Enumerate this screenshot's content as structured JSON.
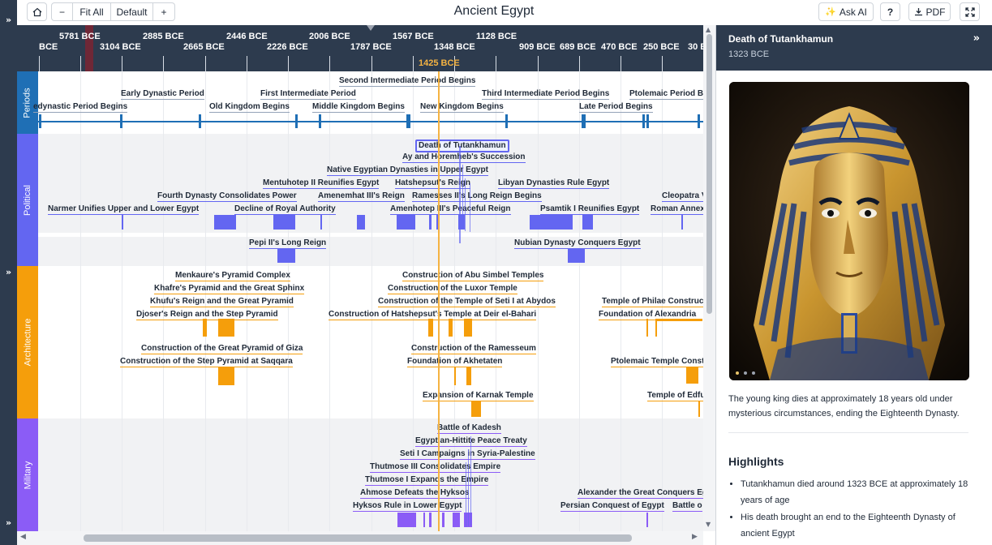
{
  "toolbar": {
    "home_icon": "home-icon",
    "zoom_out_label": "−",
    "fit_all_label": "Fit All",
    "default_label": "Default",
    "zoom_in_label": "+",
    "title": "Ancient Egypt",
    "ask_ai_label": "Ask AI",
    "help_label": "?",
    "pdf_label": "PDF",
    "fullscreen_icon": "fullscreen-icon"
  },
  "rail": {
    "expand_glyph": "»"
  },
  "ruler": {
    "top_labels": [
      "5781 BCE",
      "2885 BCE",
      "2446 BCE",
      "2006 BCE",
      "1567 BCE",
      "1128 BCE"
    ],
    "bottom_labels": [
      "BCE",
      "3104 BCE",
      "2665 BCE",
      "2226 BCE",
      "1787 BCE",
      "1348 BCE",
      "909 BCE",
      "689 BCE",
      "470 BCE",
      "250 BCE",
      "30 E"
    ],
    "current": "1425 BCE"
  },
  "categories": {
    "periods": "Periods",
    "political": "Political",
    "architecture": "Architecture",
    "military": "Military"
  },
  "events": {
    "periods": [
      "Second Intermediate Period Begins",
      "Early Dynastic Period",
      "First Intermediate Period",
      "Third Intermediate Period Begins",
      "Ptolemaic Period Be",
      "edynastic Period Begins",
      "Old Kingdom Begins",
      "Middle Kingdom Begins",
      "New Kingdom Begins",
      "Late Period Begins"
    ],
    "political": [
      "Death of Tutankhamun",
      "Ay and Horemheb's Succession",
      "Native Egyptian Dynasties in Upper Egypt",
      "Mentuhotep II Reunifies Egypt",
      "Hatshepsut's Reign",
      "Libyan Dynasties Rule Egypt",
      "Fourth Dynasty Consolidates Power",
      "Amenemhat III's Reign",
      "Ramesses II's Long Reign Begins",
      "Cleopatra V",
      "Narmer Unifies Upper and Lower Egypt",
      "Decline of Royal Authority",
      "Amenhotep III's Peaceful Reign",
      "Psamtik I Reunifies Egypt",
      "Roman Annex",
      "Pepi II's Long Reign",
      "Nubian Dynasty Conquers Egypt"
    ],
    "architecture": [
      "Menkaure's Pyramid Complex",
      "Construction of Abu Simbel Temples",
      "Khafre's Pyramid and the Great Sphinx",
      "Construction of the Luxor Temple",
      "Khufu's Reign and the Great Pyramid",
      "Construction of the Temple of Seti I at Abydos",
      "Temple of Philae Construct",
      "Djoser's Reign and the Step Pyramid",
      "Construction of Hatshepsut's Temple at Deir el-Bahari",
      "Foundation of Alexandria",
      "Construction of the Great Pyramid of Giza",
      "Construction of the Ramesseum",
      "Construction of the Step Pyramid at Saqqara",
      "Foundation of Akhetaten",
      "Ptolemaic Temple Const",
      "Expansion of Karnak Temple",
      "Temple of Edfu"
    ],
    "military": [
      "Battle of Kadesh",
      "Egyptian-Hittite Peace Treaty",
      "Seti I Campaigns in Syria-Palestine",
      "Thutmose III Consolidates Empire",
      "Thutmose I Expands the Empire",
      "Ahmose Defeats the Hyksos",
      "Alexander the Great Conquers Eg",
      "Hyksos Rule in Lower Egypt",
      "Persian Conquest of Egypt",
      "Battle o"
    ]
  },
  "panel": {
    "title": "Death of Tutankhamun",
    "date": "1323 BCE",
    "collapse_glyph": "»",
    "image_subject": "Golden funerary mask of Tutankhamun",
    "description": "The young king dies at approximately 18 years old under mysterious circumstances, ending the Eighteenth Dynasty.",
    "highlights_title": "Highlights",
    "highlights": [
      "Tutankhamun died around 1323 BCE at approximately 18 years of age",
      "His death brought an end to the Eighteenth Dynasty of ancient Egypt"
    ]
  },
  "colors": {
    "rail": "#2d3b4e",
    "periods": "#1f6fb5",
    "political": "#6366f1",
    "architecture": "#f59e0b",
    "military": "#8b5cf6",
    "cursor": "#f5b342"
  }
}
